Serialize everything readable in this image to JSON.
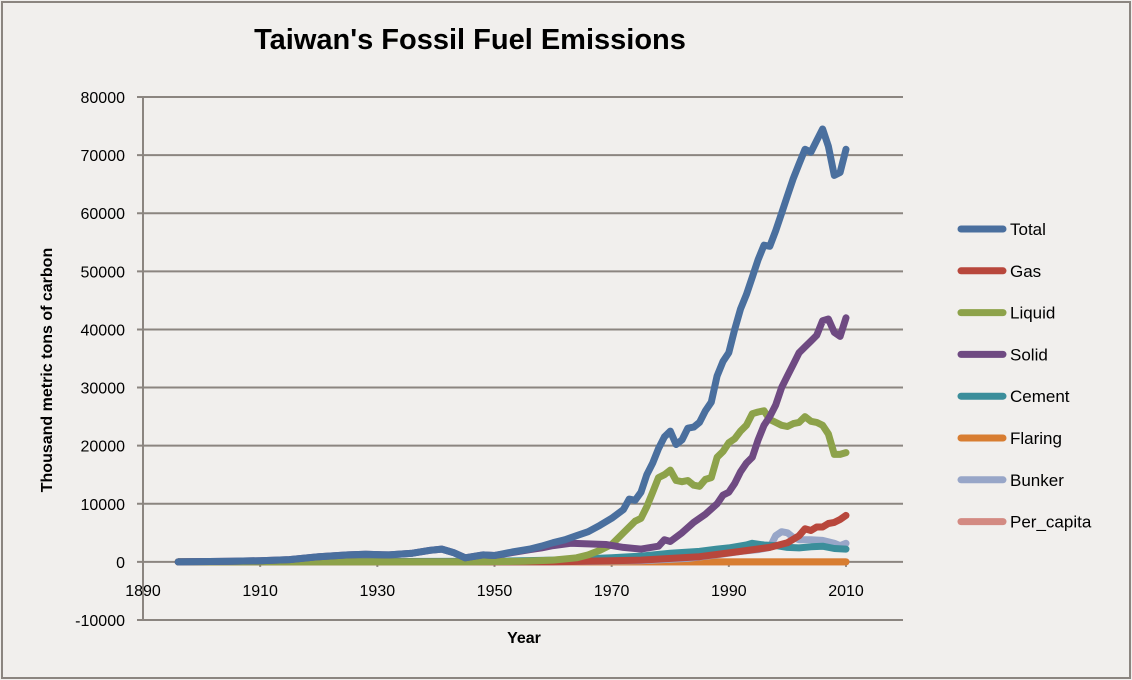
{
  "chart_data": {
    "type": "line",
    "title": "Taiwan's Fossil Fuel Emissions",
    "xlabel": "Year",
    "ylabel": "Thousand metric tons of carbon",
    "xlim": [
      1890,
      2020
    ],
    "ylim": [
      -10000,
      80000
    ],
    "x_ticks": [
      "1890",
      "1910",
      "1930",
      "1950",
      "1970",
      "1990",
      "2010"
    ],
    "y_ticks": [
      "80000",
      "70000",
      "60000",
      "50000",
      "40000",
      "30000",
      "20000",
      "10000",
      "0",
      "-10000"
    ],
    "grid": true,
    "legend_position": "right",
    "series": [
      {
        "name": "Total",
        "color": "#4a6f9e",
        "points": [
          [
            1896,
            0
          ],
          [
            1905,
            100
          ],
          [
            1910,
            200
          ],
          [
            1915,
            400
          ],
          [
            1920,
            900
          ],
          [
            1925,
            1200
          ],
          [
            1928,
            1300
          ],
          [
            1932,
            1200
          ],
          [
            1936,
            1500
          ],
          [
            1939,
            2000
          ],
          [
            1941,
            2200
          ],
          [
            1943,
            1600
          ],
          [
            1945,
            700
          ],
          [
            1948,
            1200
          ],
          [
            1950,
            1100
          ],
          [
            1953,
            1700
          ],
          [
            1956,
            2200
          ],
          [
            1958,
            2700
          ],
          [
            1960,
            3300
          ],
          [
            1962,
            3800
          ],
          [
            1964,
            4500
          ],
          [
            1966,
            5200
          ],
          [
            1968,
            6300
          ],
          [
            1970,
            7500
          ],
          [
            1972,
            9000
          ],
          [
            1973,
            10800
          ],
          [
            1974,
            10600
          ],
          [
            1975,
            12000
          ],
          [
            1976,
            15000
          ],
          [
            1977,
            17000
          ],
          [
            1978,
            19500
          ],
          [
            1979,
            21500
          ],
          [
            1980,
            22500
          ],
          [
            1981,
            20200
          ],
          [
            1982,
            21000
          ],
          [
            1983,
            23000
          ],
          [
            1984,
            23200
          ],
          [
            1985,
            24000
          ],
          [
            1986,
            26000
          ],
          [
            1987,
            27500
          ],
          [
            1988,
            32000
          ],
          [
            1989,
            34500
          ],
          [
            1990,
            36000
          ],
          [
            1991,
            40000
          ],
          [
            1992,
            43500
          ],
          [
            1993,
            46000
          ],
          [
            1994,
            49000
          ],
          [
            1995,
            52000
          ],
          [
            1996,
            54500
          ],
          [
            1997,
            54300
          ],
          [
            1998,
            57000
          ],
          [
            1999,
            60000
          ],
          [
            2000,
            63000
          ],
          [
            2001,
            66000
          ],
          [
            2002,
            68500
          ],
          [
            2003,
            71000
          ],
          [
            2004,
            70500
          ],
          [
            2005,
            72500
          ],
          [
            2006,
            74500
          ],
          [
            2007,
            71500
          ],
          [
            2008,
            66500
          ],
          [
            2009,
            67000
          ],
          [
            2010,
            71000
          ]
        ]
      },
      {
        "name": "Gas",
        "color": "#b8473c",
        "points": [
          [
            1896,
            0
          ],
          [
            1960,
            0
          ],
          [
            1975,
            300
          ],
          [
            1985,
            900
          ],
          [
            1992,
            1800
          ],
          [
            1997,
            2500
          ],
          [
            2000,
            3300
          ],
          [
            2002,
            4500
          ],
          [
            2003,
            5700
          ],
          [
            2004,
            5400
          ],
          [
            2005,
            6000
          ],
          [
            2006,
            6000
          ],
          [
            2007,
            6600
          ],
          [
            2008,
            6800
          ],
          [
            2009,
            7300
          ],
          [
            2010,
            8000
          ]
        ]
      },
      {
        "name": "Liquid",
        "color": "#8da24a",
        "points": [
          [
            1896,
            0
          ],
          [
            1945,
            0
          ],
          [
            1955,
            100
          ],
          [
            1960,
            300
          ],
          [
            1964,
            700
          ],
          [
            1966,
            1200
          ],
          [
            1968,
            2000
          ],
          [
            1970,
            3000
          ],
          [
            1972,
            5000
          ],
          [
            1974,
            7000
          ],
          [
            1975,
            7500
          ],
          [
            1976,
            9500
          ],
          [
            1977,
            12000
          ],
          [
            1978,
            14500
          ],
          [
            1979,
            15000
          ],
          [
            1980,
            15800
          ],
          [
            1981,
            14000
          ],
          [
            1982,
            13800
          ],
          [
            1983,
            14000
          ],
          [
            1984,
            13200
          ],
          [
            1985,
            13000
          ],
          [
            1986,
            14200
          ],
          [
            1987,
            14500
          ],
          [
            1988,
            18000
          ],
          [
            1989,
            19000
          ],
          [
            1990,
            20500
          ],
          [
            1991,
            21200
          ],
          [
            1992,
            22500
          ],
          [
            1993,
            23500
          ],
          [
            1994,
            25500
          ],
          [
            1995,
            25800
          ],
          [
            1996,
            26000
          ],
          [
            1997,
            24500
          ],
          [
            1998,
            24000
          ],
          [
            1999,
            23500
          ],
          [
            2000,
            23300
          ],
          [
            2001,
            23800
          ],
          [
            2002,
            24000
          ],
          [
            2003,
            25000
          ],
          [
            2004,
            24200
          ],
          [
            2005,
            24000
          ],
          [
            2006,
            23500
          ],
          [
            2007,
            22000
          ],
          [
            2008,
            18500
          ],
          [
            2009,
            18500
          ],
          [
            2010,
            18800
          ]
        ]
      },
      {
        "name": "Solid",
        "color": "#6f4a82",
        "points": [
          [
            1896,
            0
          ],
          [
            1905,
            100
          ],
          [
            1910,
            200
          ],
          [
            1915,
            400
          ],
          [
            1920,
            900
          ],
          [
            1925,
            1200
          ],
          [
            1928,
            1300
          ],
          [
            1932,
            1200
          ],
          [
            1936,
            1500
          ],
          [
            1939,
            2000
          ],
          [
            1941,
            2200
          ],
          [
            1943,
            1600
          ],
          [
            1945,
            700
          ],
          [
            1948,
            1200
          ],
          [
            1950,
            1100
          ],
          [
            1953,
            1600
          ],
          [
            1956,
            2100
          ],
          [
            1958,
            2400
          ],
          [
            1960,
            2800
          ],
          [
            1963,
            3200
          ],
          [
            1966,
            3100
          ],
          [
            1969,
            3000
          ],
          [
            1972,
            2500
          ],
          [
            1975,
            2200
          ],
          [
            1978,
            2700
          ],
          [
            1979,
            3800
          ],
          [
            1980,
            3500
          ],
          [
            1982,
            5000
          ],
          [
            1984,
            6800
          ],
          [
            1986,
            8200
          ],
          [
            1988,
            10000
          ],
          [
            1989,
            11500
          ],
          [
            1990,
            12000
          ],
          [
            1991,
            13500
          ],
          [
            1992,
            15500
          ],
          [
            1993,
            17000
          ],
          [
            1994,
            18000
          ],
          [
            1995,
            21000
          ],
          [
            1996,
            23500
          ],
          [
            1997,
            25000
          ],
          [
            1998,
            27000
          ],
          [
            1999,
            30000
          ],
          [
            2000,
            32000
          ],
          [
            2001,
            34000
          ],
          [
            2002,
            36000
          ],
          [
            2003,
            37000
          ],
          [
            2004,
            38000
          ],
          [
            2005,
            39000
          ],
          [
            2006,
            41500
          ],
          [
            2007,
            41800
          ],
          [
            2008,
            39500
          ],
          [
            2009,
            38800
          ],
          [
            2010,
            42000
          ]
        ]
      },
      {
        "name": "Cement",
        "color": "#3b8e9b",
        "points": [
          [
            1896,
            0
          ],
          [
            1950,
            100
          ],
          [
            1960,
            300
          ],
          [
            1970,
            700
          ],
          [
            1975,
            1000
          ],
          [
            1980,
            1500
          ],
          [
            1985,
            1800
          ],
          [
            1988,
            2200
          ],
          [
            1990,
            2400
          ],
          [
            1993,
            2900
          ],
          [
            1994,
            3200
          ],
          [
            1996,
            2900
          ],
          [
            1998,
            2800
          ],
          [
            2000,
            2500
          ],
          [
            2002,
            2400
          ],
          [
            2004,
            2600
          ],
          [
            2006,
            2700
          ],
          [
            2008,
            2300
          ],
          [
            2010,
            2200
          ]
        ]
      },
      {
        "name": "Flaring",
        "color": "#d87d31",
        "points": [
          [
            1896,
            0
          ],
          [
            2010,
            0
          ]
        ]
      },
      {
        "name": "Bunker",
        "color": "#98a6c8",
        "points": [
          [
            1896,
            0
          ],
          [
            1960,
            0
          ],
          [
            1975,
            200
          ],
          [
            1983,
            600
          ],
          [
            1988,
            1200
          ],
          [
            1992,
            1800
          ],
          [
            1995,
            2100
          ],
          [
            1997,
            2500
          ],
          [
            1998,
            4500
          ],
          [
            1999,
            5200
          ],
          [
            2000,
            5000
          ],
          [
            2001,
            4200
          ],
          [
            2002,
            3800
          ],
          [
            2004,
            3800
          ],
          [
            2006,
            3700
          ],
          [
            2008,
            3200
          ],
          [
            2009,
            2800
          ],
          [
            2010,
            3200
          ]
        ]
      },
      {
        "name": "Per_capita",
        "color": "#d38a82",
        "points": [
          [
            1896,
            0
          ],
          [
            2010,
            0
          ]
        ]
      }
    ]
  },
  "chart": {
    "title": "Taiwan's Fossil Fuel Emissions",
    "xlabel": "Year",
    "ylabel": "Thousand metric tons of carbon",
    "x_ticks": [
      "1890",
      "1910",
      "1930",
      "1950",
      "1970",
      "1990",
      "2010"
    ],
    "y_ticks": [
      "80000",
      "70000",
      "60000",
      "50000",
      "40000",
      "30000",
      "20000",
      "10000",
      "0",
      "-10000"
    ],
    "legend": [
      "Total",
      "Gas",
      "Liquid",
      "Solid",
      "Cement",
      "Flaring",
      "Bunker",
      "Per_capita"
    ]
  }
}
